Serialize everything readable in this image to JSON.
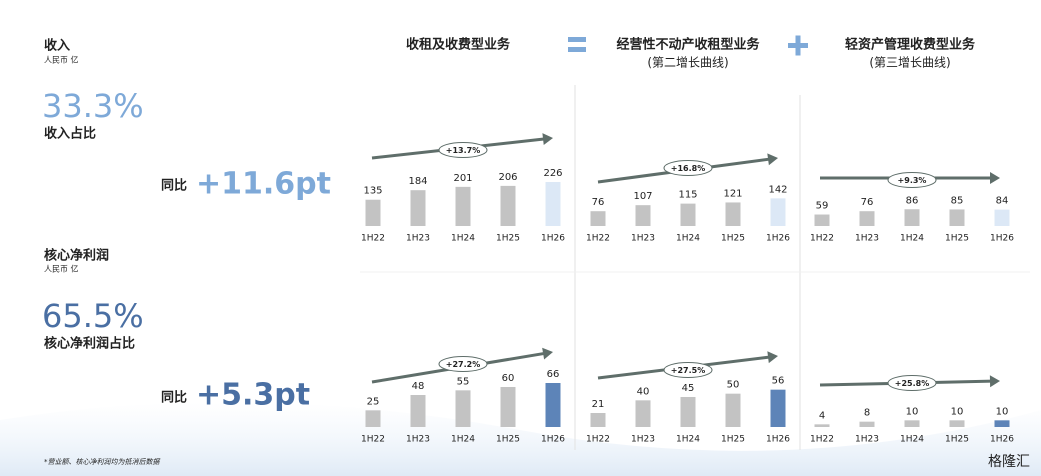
{
  "left": {
    "revenue": {
      "title": "收入",
      "unit": "人民币 亿",
      "share": "33.3%",
      "share_label": "收入占比",
      "yoy_label": "同比",
      "yoy": "+11.6pt"
    },
    "profit": {
      "title": "核心净利润",
      "unit": "人民币 亿",
      "share": "65.5%",
      "share_label": "核心净利润占比",
      "yoy_label": "同比",
      "yoy": "+5.3pt"
    }
  },
  "columns": [
    {
      "title": "收租及收费型业务"
    },
    {
      "title": "经营性不动产收租型业务",
      "subtitle": "(第二增长曲线)"
    },
    {
      "title": "轻资产管理收费型业务",
      "subtitle": "(第三增长曲线)"
    }
  ],
  "footnote": "*营业额、核心净利润均为抵消后数据",
  "watermark": "格隆汇",
  "chart_data": [
    {
      "type": "bar",
      "categories": [
        "1H22",
        "1H23",
        "1H24",
        "1H25",
        "1H26"
      ],
      "values": [
        135,
        184,
        201,
        206,
        226
      ],
      "colors": [
        "#c3c3c3",
        "#c3c3c3",
        "#c3c3c3",
        "#c3c3c3",
        "#dce8f6"
      ],
      "annotation": "+13.7%"
    },
    {
      "type": "bar",
      "categories": [
        "1H22",
        "1H23",
        "1H24",
        "1H25",
        "1H26"
      ],
      "values": [
        76,
        107,
        115,
        121,
        142
      ],
      "colors": [
        "#c3c3c3",
        "#c3c3c3",
        "#c3c3c3",
        "#c3c3c3",
        "#dce8f6"
      ],
      "annotation": "+16.8%"
    },
    {
      "type": "bar",
      "categories": [
        "1H22",
        "1H23",
        "1H24",
        "1H25",
        "1H26"
      ],
      "values": [
        59,
        76,
        86,
        85,
        84
      ],
      "colors": [
        "#c3c3c3",
        "#c3c3c3",
        "#c3c3c3",
        "#c3c3c3",
        "#dce8f6"
      ],
      "annotation": "+9.3%"
    },
    {
      "type": "bar",
      "categories": [
        "1H22",
        "1H23",
        "1H24",
        "1H25",
        "1H26"
      ],
      "values": [
        25,
        48,
        55,
        60,
        66
      ],
      "colors": [
        "#c3c3c3",
        "#c3c3c3",
        "#c3c3c3",
        "#c3c3c3",
        "#5d84b8"
      ],
      "annotation": "+27.2%"
    },
    {
      "type": "bar",
      "categories": [
        "1H22",
        "1H23",
        "1H24",
        "1H25",
        "1H26"
      ],
      "values": [
        21,
        40,
        45,
        50,
        56
      ],
      "colors": [
        "#c3c3c3",
        "#c3c3c3",
        "#c3c3c3",
        "#c3c3c3",
        "#5d84b8"
      ],
      "annotation": "+27.5%"
    },
    {
      "type": "bar",
      "categories": [
        "1H22",
        "1H23",
        "1H24",
        "1H25",
        "1H26"
      ],
      "values": [
        4,
        8,
        10,
        10,
        10
      ],
      "colors": [
        "#c3c3c3",
        "#c3c3c3",
        "#c3c3c3",
        "#c3c3c3",
        "#5d84b8"
      ],
      "annotation": "+25.8%"
    }
  ]
}
